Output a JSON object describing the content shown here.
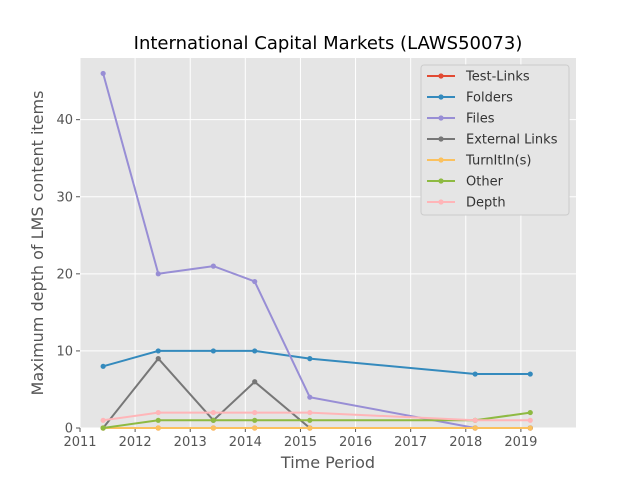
{
  "chart_data": {
    "type": "line",
    "title": "International Capital Markets (LAWS50073)",
    "xlabel": "Time Period",
    "ylabel": "Maximum depth of LMS content items",
    "xlim": [
      2011,
      2020
    ],
    "ylim": [
      0,
      48
    ],
    "xticks": [
      2011,
      2012,
      2013,
      2014,
      2015,
      2016,
      2017,
      2018,
      2019
    ],
    "yticks": [
      0,
      10,
      20,
      30,
      40
    ],
    "x": [
      2011.42,
      2012.42,
      2013.42,
      2014.17,
      2015.17,
      2018.17,
      2019.17
    ],
    "grid": true,
    "legend_position": "top-right",
    "series": [
      {
        "name": "Test-Links",
        "color": "#E24A33",
        "values": [
          0,
          0,
          0,
          0,
          0,
          0,
          0
        ]
      },
      {
        "name": "Folders",
        "color": "#348ABD",
        "values": [
          8,
          10,
          10,
          10,
          9,
          7,
          7
        ]
      },
      {
        "name": "Files",
        "color": "#988ED5",
        "values": [
          46,
          20,
          21,
          19,
          4,
          0,
          0
        ]
      },
      {
        "name": "External Links",
        "color": "#777777",
        "values": [
          0,
          9,
          1,
          6,
          0,
          0,
          0
        ]
      },
      {
        "name": "TurnItIn(s)",
        "color": "#FBC15E",
        "values": [
          0,
          0,
          0,
          0,
          0,
          0,
          0
        ]
      },
      {
        "name": "Other",
        "color": "#8EBA42",
        "values": [
          0,
          1,
          1,
          1,
          1,
          1,
          2
        ]
      },
      {
        "name": "Depth",
        "color": "#FFB5B8",
        "values": [
          1,
          2,
          2,
          2,
          2,
          1,
          1
        ]
      }
    ]
  }
}
